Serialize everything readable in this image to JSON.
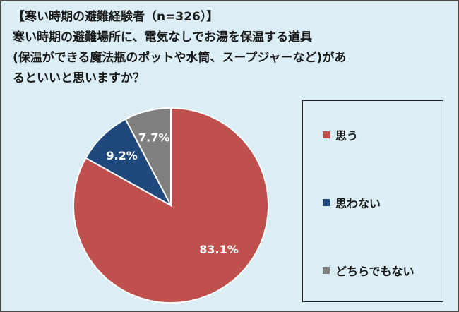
{
  "header": {
    "title": "【寒い時期の避難経験者（n=326）】",
    "question_lines": [
      "寒い時期の避難場所に、電気なしでお湯を保温する道具",
      "(保温ができる魔法瓶のポットや水筒、スープジャーなど)があ",
      "るといいと思いますか？"
    ]
  },
  "chart_data": {
    "type": "pie",
    "title": "【寒い時期の避難経験者（n=326）】",
    "slices": [
      {
        "label": "思う",
        "value": 83.1,
        "display": "83.1%",
        "color": "#C0504D"
      },
      {
        "label": "思わない",
        "value": 9.2,
        "display": "9.2%",
        "color": "#1F497D"
      },
      {
        "label": "どちらでもない",
        "value": 7.7,
        "display": "7.7%",
        "color": "#7F7F7F"
      }
    ],
    "start_angle": "12 o'clock",
    "direction": "clockwise",
    "legend_placement": "right"
  }
}
